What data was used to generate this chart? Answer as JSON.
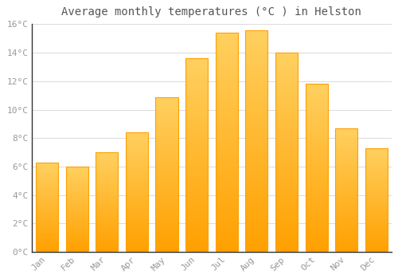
{
  "title": "Average monthly temperatures (°C ) in Helston",
  "months": [
    "Jan",
    "Feb",
    "Mar",
    "Apr",
    "May",
    "Jun",
    "Jul",
    "Aug",
    "Sep",
    "Oct",
    "Nov",
    "Dec"
  ],
  "values": [
    6.3,
    6.0,
    7.0,
    8.4,
    10.9,
    13.6,
    15.4,
    15.6,
    14.0,
    11.8,
    8.7,
    7.3
  ],
  "bar_color_top": "#FFD060",
  "bar_color_bottom": "#FFA000",
  "background_color": "#FFFFFF",
  "plot_bg_color": "#FFFFFF",
  "grid_color": "#DDDDDD",
  "ylim": [
    0,
    16
  ],
  "yticks": [
    0,
    2,
    4,
    6,
    8,
    10,
    12,
    14,
    16
  ],
  "ytick_labels": [
    "0°C",
    "2°C",
    "4°C",
    "6°C",
    "8°C",
    "10°C",
    "12°C",
    "14°C",
    "16°C"
  ],
  "title_fontsize": 10,
  "tick_fontsize": 8,
  "tick_color": "#999999",
  "spine_color": "#333333",
  "bar_width": 0.75
}
